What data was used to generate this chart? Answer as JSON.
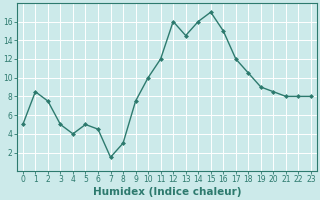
{
  "x": [
    0,
    1,
    2,
    3,
    4,
    5,
    6,
    7,
    8,
    9,
    10,
    11,
    12,
    13,
    14,
    15,
    16,
    17,
    18,
    19,
    20,
    21,
    22,
    23
  ],
  "y": [
    5,
    8.5,
    7.5,
    5,
    4,
    5,
    4.5,
    1.5,
    3,
    7.5,
    10,
    12,
    16,
    14.5,
    16,
    17,
    15,
    12,
    10.5,
    9,
    8.5,
    8,
    8,
    8
  ],
  "line_color": "#2d7a6e",
  "marker": "D",
  "marker_size": 2.0,
  "line_width": 1.0,
  "xlabel": "Humidex (Indice chaleur)",
  "xlabel_fontsize": 7.5,
  "xlim": [
    -0.5,
    23.5
  ],
  "ylim": [
    0,
    18
  ],
  "yticks": [
    2,
    4,
    6,
    8,
    10,
    12,
    14,
    16
  ],
  "xticks": [
    0,
    1,
    2,
    3,
    4,
    5,
    6,
    7,
    8,
    9,
    10,
    11,
    12,
    13,
    14,
    15,
    16,
    17,
    18,
    19,
    20,
    21,
    22,
    23
  ],
  "bg_color": "#cceaea",
  "grid_color": "#ffffff",
  "tick_fontsize": 5.5,
  "spine_color": "#2d7a6e"
}
